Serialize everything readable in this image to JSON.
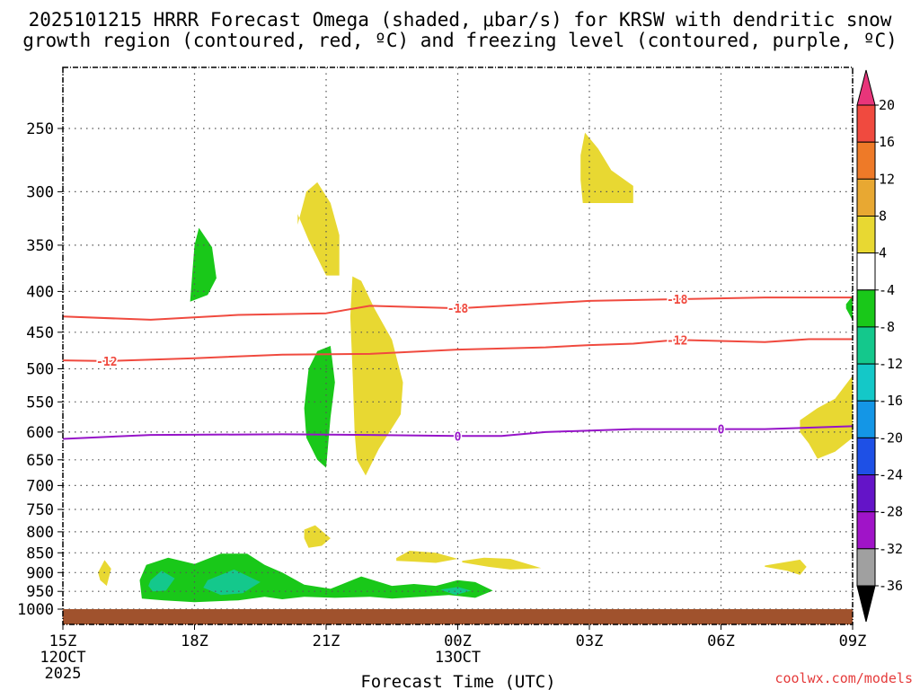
{
  "chart_data": {
    "type": "heatmap",
    "title_line1": "2025101215 HRRR Forecast Omega (shaded, μbar/s) for KRSW with dendritic snow",
    "title_line2": "growth region (contoured, red, ºC) and freezing level (contoured, purple, ºC)",
    "xlabel": "Forecast Time (UTC)",
    "credit": "coolwx.com/models",
    "x_ticks": [
      {
        "hour": 0,
        "label": "15Z",
        "sub1": "12OCT",
        "sub2": "2025"
      },
      {
        "hour": 3,
        "label": "18Z",
        "sub1": "",
        "sub2": ""
      },
      {
        "hour": 6,
        "label": "21Z",
        "sub1": "",
        "sub2": ""
      },
      {
        "hour": 9,
        "label": "00Z",
        "sub1": "13OCT",
        "sub2": ""
      },
      {
        "hour": 12,
        "label": "03Z",
        "sub1": "",
        "sub2": ""
      },
      {
        "hour": 15,
        "label": "06Z",
        "sub1": "",
        "sub2": ""
      },
      {
        "hour": 18,
        "label": "09Z",
        "sub1": "",
        "sub2": ""
      }
    ],
    "y_levels": [
      250,
      300,
      350,
      400,
      450,
      500,
      550,
      600,
      650,
      700,
      750,
      800,
      850,
      900,
      950,
      1000
    ],
    "x_range_hours": [
      0,
      18
    ],
    "y_range_hpa": [
      190,
      1030
    ],
    "surface_hpa": 1005,
    "colorbar": {
      "labels": [
        "20",
        "16",
        "12",
        "8",
        "4",
        "-4",
        "-8",
        "-12",
        "-16",
        "-20",
        "-24",
        "-28",
        "-32",
        "-36"
      ],
      "colors": [
        "#e8357a",
        "#f04a3f",
        "#ee7a28",
        "#e8a832",
        "#e8d832",
        "#ffffff",
        "#19c819",
        "#14c88c",
        "#14c8c8",
        "#1496e6",
        "#1e50e6",
        "#6414c8",
        "#a014c8",
        "#a0a0a0",
        "#000000"
      ]
    },
    "contours": [
      {
        "name": "dgz-upper",
        "label": "-18",
        "color": "#f04a3f",
        "points": [
          [
            0,
            430
          ],
          [
            2,
            434
          ],
          [
            4,
            428
          ],
          [
            6,
            426
          ],
          [
            7,
            417
          ],
          [
            9,
            420
          ],
          [
            12,
            411
          ],
          [
            14,
            409
          ],
          [
            16,
            407
          ],
          [
            18,
            407
          ]
        ],
        "label_at": [
          [
            9,
            420
          ],
          [
            14,
            409
          ]
        ]
      },
      {
        "name": "dgz-lower",
        "label": "-12",
        "color": "#f04a3f",
        "points": [
          [
            0,
            488
          ],
          [
            1,
            489
          ],
          [
            3,
            485
          ],
          [
            5,
            480
          ],
          [
            7,
            479
          ],
          [
            9,
            473
          ],
          [
            11,
            470
          ],
          [
            12,
            467
          ],
          [
            13,
            465
          ],
          [
            14,
            460
          ],
          [
            16,
            463
          ],
          [
            17,
            459
          ],
          [
            18,
            459
          ]
        ],
        "label_at": [
          [
            1,
            489
          ],
          [
            14,
            460
          ]
        ]
      },
      {
        "name": "freezing-level",
        "label": "0",
        "color": "#9614c8",
        "points": [
          [
            0,
            612
          ],
          [
            2,
            605
          ],
          [
            5,
            604
          ],
          [
            7,
            605
          ],
          [
            9,
            607
          ],
          [
            10,
            607
          ],
          [
            11,
            600
          ],
          [
            13,
            595
          ],
          [
            14,
            595
          ],
          [
            16,
            595
          ],
          [
            18,
            590
          ]
        ],
        "label_at": [
          [
            9,
            607
          ],
          [
            15,
            595
          ]
        ]
      }
    ],
    "regions": [
      {
        "name": "upward-omega-upper-left",
        "value": "-4 to -8",
        "color": "#19c819",
        "points": [
          [
            2.9,
            412
          ],
          [
            3.0,
            350
          ],
          [
            3.1,
            333
          ],
          [
            3.4,
            352
          ],
          [
            3.5,
            385
          ],
          [
            3.3,
            404
          ]
        ]
      },
      {
        "name": "rising-21z-green",
        "value": "-4 to -8",
        "color": "#19c819",
        "points": [
          [
            5.6,
            500
          ],
          [
            5.8,
            475
          ],
          [
            6.1,
            468
          ],
          [
            6.2,
            520
          ],
          [
            6.1,
            575
          ],
          [
            6.0,
            665
          ],
          [
            5.8,
            650
          ],
          [
            5.55,
            610
          ],
          [
            5.5,
            560
          ]
        ]
      },
      {
        "name": "sinking-21z-upper",
        "value": "4 to 8",
        "color": "#e8d832",
        "points": [
          [
            5.35,
            330
          ],
          [
            5.55,
            300
          ],
          [
            5.8,
            292
          ],
          [
            6.1,
            310
          ],
          [
            6.3,
            340
          ],
          [
            6.3,
            382
          ],
          [
            6.0,
            382
          ],
          [
            5.6,
            345
          ],
          [
            5.35,
            320
          ]
        ]
      },
      {
        "name": "sinking-22z-column",
        "value": "4 to 8",
        "color": "#e8d832",
        "points": [
          [
            6.6,
            383
          ],
          [
            6.8,
            388
          ],
          [
            7.1,
            420
          ],
          [
            7.5,
            460
          ],
          [
            7.75,
            520
          ],
          [
            7.7,
            570
          ],
          [
            7.2,
            630
          ],
          [
            6.9,
            680
          ],
          [
            6.7,
            650
          ],
          [
            6.65,
            600
          ],
          [
            6.6,
            500
          ],
          [
            6.55,
            430
          ]
        ]
      },
      {
        "name": "sinking-03z",
        "value": "4 to 8",
        "color": "#e8d832",
        "points": [
          [
            11.8,
            270
          ],
          [
            11.9,
            253
          ],
          [
            12.2,
            265
          ],
          [
            12.5,
            282
          ],
          [
            13.0,
            295
          ],
          [
            13.0,
            310
          ],
          [
            11.85,
            310
          ],
          [
            11.8,
            290
          ]
        ]
      },
      {
        "name": "sinking-0630z-right",
        "value": "4 to 8",
        "color": "#e8d832",
        "points": [
          [
            16.8,
            580
          ],
          [
            17.2,
            560
          ],
          [
            17.6,
            545
          ],
          [
            18.0,
            510
          ],
          [
            18.0,
            610
          ],
          [
            17.6,
            635
          ],
          [
            17.2,
            648
          ],
          [
            17.0,
            620
          ],
          [
            16.8,
            600
          ]
        ]
      },
      {
        "name": "upward-right-edge",
        "value": "-4 to -8",
        "color": "#19c819",
        "points": [
          [
            17.85,
            415
          ],
          [
            18.0,
            405
          ],
          [
            18.0,
            435
          ],
          [
            17.85,
            420
          ]
        ]
      },
      {
        "name": "sinking-21z-lower",
        "value": "4 to 8",
        "color": "#e8d832",
        "points": [
          [
            5.5,
            795
          ],
          [
            5.75,
            785
          ],
          [
            6.1,
            815
          ],
          [
            5.9,
            833
          ],
          [
            5.6,
            838
          ],
          [
            5.5,
            815
          ]
        ]
      },
      {
        "name": "sinking-2330z",
        "value": "4 to 8",
        "color": "#e8d832",
        "points": [
          [
            7.6,
            863
          ],
          [
            7.9,
            845
          ],
          [
            8.5,
            850
          ],
          [
            9.0,
            865
          ],
          [
            8.5,
            875
          ],
          [
            8.0,
            872
          ],
          [
            7.6,
            870
          ]
        ]
      },
      {
        "name": "sinking-0130z",
        "value": "4 to 8",
        "color": "#e8d832",
        "points": [
          [
            9.1,
            870
          ],
          [
            9.6,
            862
          ],
          [
            10.2,
            865
          ],
          [
            10.9,
            888
          ],
          [
            10.2,
            892
          ],
          [
            9.7,
            885
          ],
          [
            9.1,
            874
          ]
        ]
      },
      {
        "name": "sinking-0730z",
        "value": "4 to 8",
        "color": "#e8d832",
        "points": [
          [
            16.0,
            882
          ],
          [
            16.8,
            867
          ],
          [
            16.95,
            885
          ],
          [
            16.8,
            906
          ],
          [
            16.5,
            895
          ],
          [
            16.0,
            885
          ]
        ]
      },
      {
        "name": "sinking-15z-small",
        "value": "4 to 8",
        "color": "#e8d832",
        "points": [
          [
            0.8,
            900
          ],
          [
            0.95,
            868
          ],
          [
            1.1,
            890
          ],
          [
            1.0,
            935
          ],
          [
            0.85,
            920
          ]
        ]
      },
      {
        "name": "upward-low-level-band",
        "value": "-4 to -8",
        "color": "#19c819",
        "points": [
          [
            1.75,
            920
          ],
          [
            1.9,
            880
          ],
          [
            2.4,
            862
          ],
          [
            3.0,
            878
          ],
          [
            3.6,
            852
          ],
          [
            4.2,
            852
          ],
          [
            4.6,
            880
          ],
          [
            5.0,
            900
          ],
          [
            5.5,
            932
          ],
          [
            6.1,
            943
          ],
          [
            6.8,
            910
          ],
          [
            7.5,
            935
          ],
          [
            8.0,
            930
          ],
          [
            8.5,
            935
          ],
          [
            9.0,
            920
          ],
          [
            9.4,
            925
          ],
          [
            9.8,
            948
          ],
          [
            9.4,
            968
          ],
          [
            8.8,
            960
          ],
          [
            7.5,
            970
          ],
          [
            7.0,
            965
          ],
          [
            6.2,
            968
          ],
          [
            5.5,
            965
          ],
          [
            5.0,
            972
          ],
          [
            4.6,
            965
          ],
          [
            4.0,
            975
          ],
          [
            3.0,
            980
          ],
          [
            2.3,
            975
          ],
          [
            1.8,
            970
          ]
        ]
      },
      {
        "name": "upward-core-17z",
        "value": "-8 to -12",
        "color": "#14c88c",
        "points": [
          [
            2.0,
            920
          ],
          [
            2.25,
            895
          ],
          [
            2.55,
            915
          ],
          [
            2.35,
            948
          ],
          [
            2.05,
            950
          ],
          [
            1.95,
            935
          ]
        ]
      },
      {
        "name": "upward-core-1830z",
        "value": "-8 to -12",
        "color": "#14c88c",
        "points": [
          [
            3.3,
            920
          ],
          [
            3.9,
            892
          ],
          [
            4.5,
            925
          ],
          [
            4.1,
            955
          ],
          [
            3.6,
            960
          ],
          [
            3.2,
            940
          ]
        ]
      },
      {
        "name": "upward-core-00z",
        "value": "-8 to -12",
        "color": "#14c88c",
        "points": [
          [
            8.6,
            945
          ],
          [
            9.0,
            938
          ],
          [
            9.3,
            948
          ],
          [
            8.95,
            960
          ]
        ]
      }
    ]
  }
}
